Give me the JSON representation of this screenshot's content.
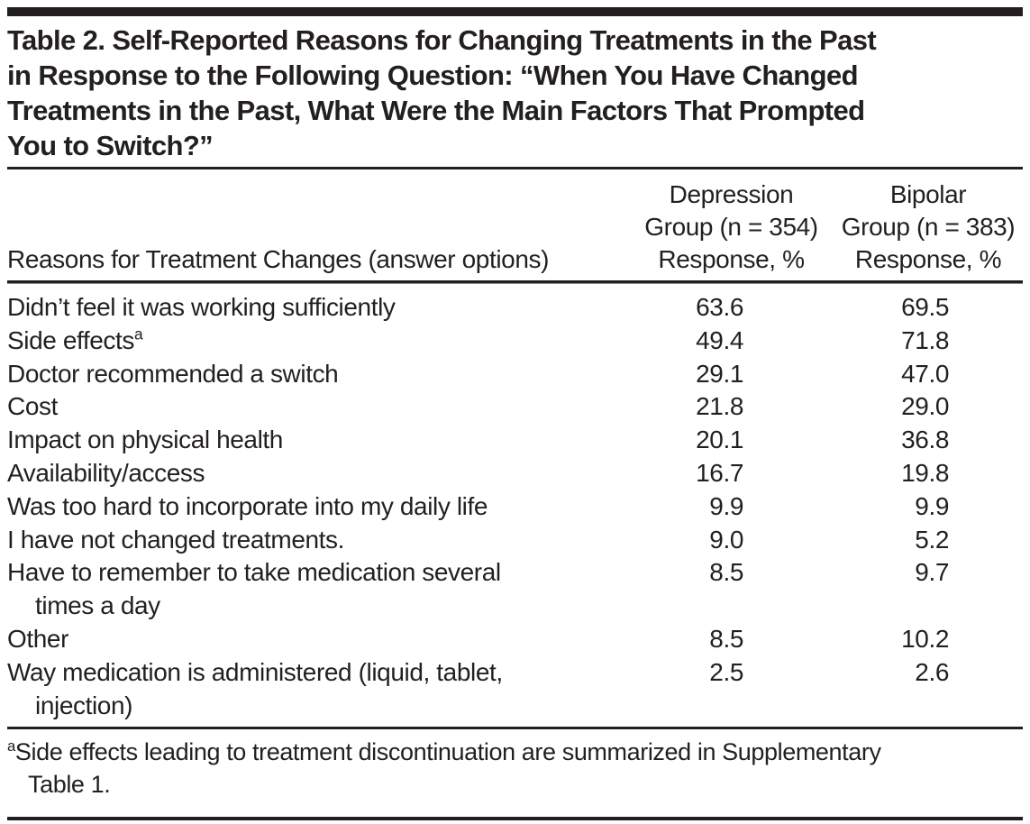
{
  "title": {
    "lines": [
      "Table 2. Self-Reported Reasons for Changing Treatments in the Past",
      "in Response to the Following Question: “When You Have Changed",
      "Treatments in the Past, What Were the Main Factors That Prompted",
      "You to Switch?”"
    ]
  },
  "header": {
    "reason_column": "Reasons for Treatment Changes (answer options)",
    "depression_column": [
      "Depression",
      "Group (n = 354)",
      "Response, %"
    ],
    "bipolar_column": [
      "Bipolar",
      "Group (n = 383)",
      "Response, %"
    ]
  },
  "rows": [
    {
      "reason": "Didn’t feel it was working sufficiently",
      "depression": "63.6",
      "bipolar": "69.5"
    },
    {
      "reason": "Side effects",
      "sup": "a",
      "depression": "49.4",
      "bipolar": "71.8"
    },
    {
      "reason": "Doctor recommended a switch",
      "depression": "29.1",
      "bipolar": "47.0"
    },
    {
      "reason": "Cost",
      "depression": "21.8",
      "bipolar": "29.0"
    },
    {
      "reason": "Impact on physical health",
      "depression": "20.1",
      "bipolar": "36.8"
    },
    {
      "reason": "Availability/access",
      "depression": "16.7",
      "bipolar": "19.8"
    },
    {
      "reason": "Was too hard to incorporate into my daily life",
      "depression": "9.9",
      "bipolar": "9.9"
    },
    {
      "reason": "I have not changed treatments.",
      "depression": "9.0",
      "bipolar": "5.2"
    },
    {
      "reason": "Have to remember to take medication several",
      "line2": "times a day",
      "depression": "8.5",
      "bipolar": "9.7"
    },
    {
      "reason": "Other",
      "depression": "8.5",
      "bipolar": "10.2"
    },
    {
      "reason": "Way medication is administered (liquid, tablet,",
      "line2": "injection)",
      "depression": "2.5",
      "bipolar": "2.6"
    }
  ],
  "footnote": {
    "marker": "a",
    "lines": [
      "Side effects leading to treatment discontinuation are summarized in Supplementary",
      "Table 1."
    ]
  },
  "colors": {
    "text": "#231f20",
    "rules": "#231f20",
    "background": "#ffffff"
  }
}
